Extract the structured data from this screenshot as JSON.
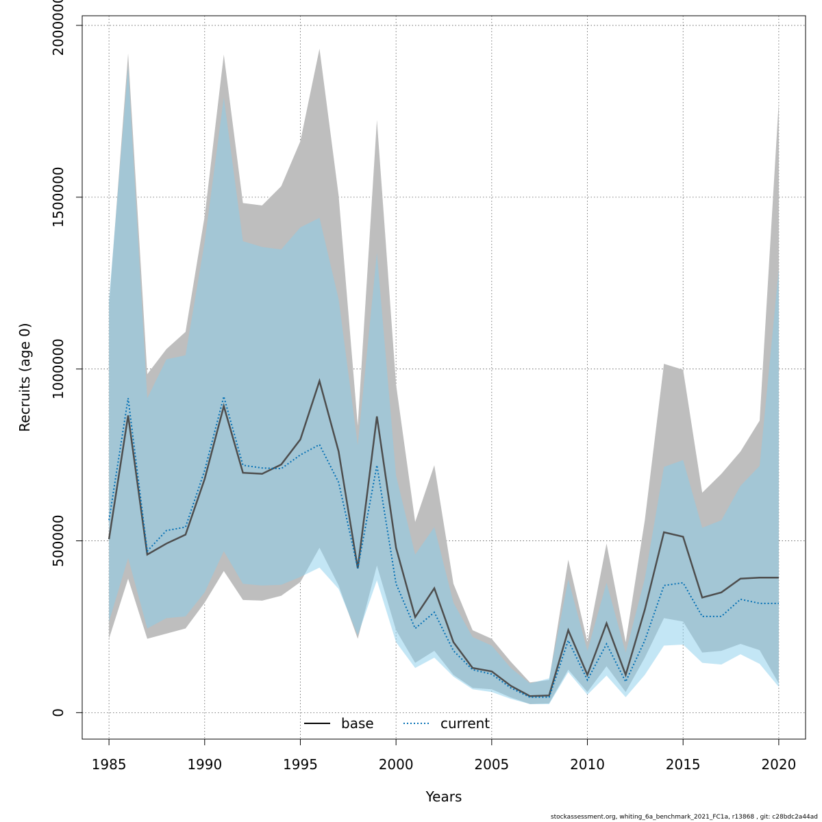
{
  "chart_data": {
    "type": "area",
    "xlabel": "Years",
    "ylabel": "Recruits (age 0)",
    "xlim": [
      1983.6,
      2021.4
    ],
    "ylim": [
      -77000,
      2028000
    ],
    "x_ticks": [
      1985,
      1990,
      1995,
      2000,
      2005,
      2010,
      2015,
      2020
    ],
    "y_ticks": [
      0,
      500000,
      1000000,
      1500000,
      2000000
    ],
    "grid": true,
    "legend_placement": "bottom",
    "x": [
      1985,
      1986,
      1987,
      1988,
      1989,
      1990,
      1991,
      1992,
      1993,
      1994,
      1995,
      1996,
      1997,
      1998,
      1999,
      2000,
      2001,
      2002,
      2003,
      2004,
      2005,
      2006,
      2007,
      2008,
      2009,
      2010,
      2011,
      2012,
      2013,
      2014,
      2015,
      2016,
      2017,
      2018,
      2019,
      2020
    ],
    "series": [
      {
        "name": "base",
        "color": "#4d4d4d",
        "band_color": "#bebebe",
        "line_style": "solid",
        "values": [
          505000,
          865000,
          460000,
          492000,
          518000,
          680000,
          892000,
          698000,
          695000,
          722000,
          795000,
          965000,
          760000,
          420000,
          862000,
          480000,
          278000,
          362000,
          205000,
          130000,
          120000,
          78000,
          48000,
          50000,
          240000,
          110000,
          260000,
          110000,
          300000,
          525000,
          512000,
          335000,
          350000,
          390000,
          393000,
          393000
        ],
        "lower": [
          215000,
          390000,
          215000,
          230000,
          245000,
          320000,
          412000,
          328000,
          326000,
          340000,
          380000,
          480000,
          370000,
          215000,
          428000,
          240000,
          145000,
          180000,
          110000,
          72000,
          68000,
          44000,
          25000,
          27000,
          125000,
          60000,
          135000,
          60000,
          160000,
          275000,
          265000,
          175000,
          180000,
          200000,
          182000,
          85000
        ],
        "upper": [
          1185000,
          1918000,
          985000,
          1058000,
          1108000,
          1445000,
          1915000,
          1483000,
          1476000,
          1532000,
          1663000,
          1932000,
          1505000,
          835000,
          1725000,
          955000,
          555000,
          720000,
          375000,
          240000,
          215000,
          148000,
          88000,
          95000,
          445000,
          205000,
          492000,
          205000,
          560000,
          1015000,
          998000,
          640000,
          695000,
          760000,
          850000,
          1778000
        ]
      },
      {
        "name": "current",
        "color": "#006eb4",
        "band_color": "#87ceeb",
        "line_style": "dotted",
        "values": [
          560000,
          915000,
          470000,
          530000,
          540000,
          705000,
          920000,
          720000,
          712000,
          710000,
          750000,
          780000,
          670000,
          420000,
          720000,
          375000,
          245000,
          292000,
          180000,
          125000,
          112000,
          72000,
          45000,
          45000,
          210000,
          95000,
          200000,
          90000,
          210000,
          370000,
          378000,
          280000,
          280000,
          330000,
          318000,
          318000
        ],
        "lower": [
          265000,
          450000,
          245000,
          275000,
          280000,
          350000,
          470000,
          375000,
          370000,
          372000,
          395000,
          422000,
          360000,
          225000,
          385000,
          205000,
          130000,
          160000,
          105000,
          68000,
          60000,
          40000,
          25000,
          25000,
          118000,
          52000,
          108000,
          45000,
          110000,
          195000,
          198000,
          145000,
          140000,
          170000,
          142000,
          75000
        ],
        "upper": [
          1200000,
          1880000,
          915000,
          1028000,
          1040000,
          1370000,
          1790000,
          1372000,
          1355000,
          1348000,
          1412000,
          1440000,
          1203000,
          778000,
          1338000,
          690000,
          460000,
          540000,
          320000,
          220000,
          195000,
          130000,
          85000,
          100000,
          388000,
          180000,
          378000,
          175000,
          390000,
          715000,
          735000,
          538000,
          560000,
          660000,
          718000,
          1290000
        ]
      }
    ]
  },
  "footer": "stockassessment.org, whiting_6a_benchmark_2021_FC1a, r13868 , git: c28bdc2a44ad"
}
